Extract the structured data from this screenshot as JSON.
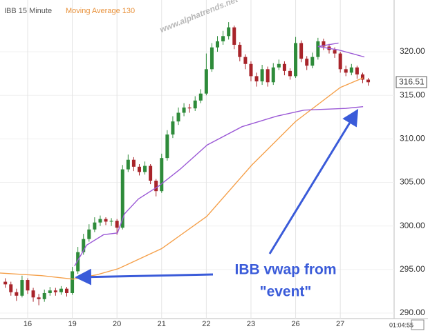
{
  "chart_data": {
    "type": "candlestick",
    "watermark": "www.alphatrends.net",
    "annotation": [
      "IBB vwap from",
      "\"event\""
    ],
    "time": "01:04:55",
    "last_price": 316.51,
    "xlim": [
      0.381,
      9.205
    ],
    "xticks": [
      {
        "value": 1,
        "label": "16"
      },
      {
        "value": 2,
        "label": "19"
      },
      {
        "value": 3,
        "label": "20"
      },
      {
        "value": 4,
        "label": "21"
      },
      {
        "value": 5,
        "label": "22"
      },
      {
        "value": 6,
        "label": "23"
      },
      {
        "value": 7,
        "label": "26"
      },
      {
        "value": 8,
        "label": "27"
      }
    ],
    "ylim": [
      289.37,
      324.2
    ],
    "yticks": [
      {
        "value": 290,
        "label": "290.00"
      },
      {
        "value": 295,
        "label": "295.00"
      },
      {
        "value": 300,
        "label": "300.00"
      },
      {
        "value": 305,
        "label": "305.00"
      },
      {
        "value": 310,
        "label": "310.00"
      },
      {
        "value": 315,
        "label": "315.00"
      },
      {
        "value": 320,
        "label": "320.00"
      }
    ],
    "grid": true,
    "series": [
      {
        "name": "IBB 15 Minute",
        "type": "candlestick",
        "up_color": "#2e8b3a",
        "down_color": "#a8242a",
        "x": [
          0.5,
          0.625,
          0.75,
          0.875,
          1,
          1.125,
          1.25,
          1.375,
          1.5,
          1.625,
          1.75,
          1.875,
          2,
          2.125,
          2.25,
          2.375,
          2.5,
          2.625,
          2.75,
          2.875,
          3,
          3.125,
          3.25,
          3.375,
          3.5,
          3.625,
          3.75,
          3.875,
          4,
          4.125,
          4.25,
          4.375,
          4.5,
          4.625,
          4.75,
          4.875,
          5,
          5.125,
          5.25,
          5.375,
          5.5,
          5.625,
          5.75,
          5.875,
          6,
          6.125,
          6.25,
          6.375,
          6.5,
          6.625,
          6.75,
          6.875,
          7,
          7.125,
          7.25,
          7.375,
          7.5,
          7.625,
          7.75,
          7.875,
          8,
          8.125,
          8.25,
          8.375,
          8.5,
          8.625
        ],
        "open": [
          293.6,
          293.3,
          292.4,
          292.0,
          293.8,
          292.6,
          291.8,
          291.6,
          292.3,
          292.6,
          292.4,
          292.8,
          292.3,
          294.8,
          297.0,
          298.5,
          299.6,
          300.4,
          300.8,
          300.5,
          300.6,
          299.8,
          306.5,
          307.6,
          306.8,
          306.2,
          306.9,
          305.2,
          304.0,
          307.8,
          310.5,
          312.0,
          313.0,
          313.6,
          313.5,
          314.4,
          315.2,
          318.0,
          320.5,
          321.2,
          321.8,
          322.8,
          320.8,
          319.4,
          318.6,
          317.2,
          316.6,
          318.0,
          316.5,
          318.2,
          318.6,
          317.8,
          317.2,
          321.0,
          319.2,
          318.4,
          319.4,
          321.2,
          320.6,
          320.2,
          319.8,
          318.0,
          317.6,
          318.2,
          317.4,
          316.8
        ],
        "high": [
          294.0,
          293.6,
          292.8,
          294.3,
          294.0,
          292.9,
          292.2,
          292.7,
          293.0,
          292.9,
          293.1,
          293.0,
          295.3,
          297.6,
          299.1,
          300.2,
          301.0,
          301.2,
          301.0,
          300.9,
          300.8,
          307.0,
          308.2,
          307.9,
          307.1,
          307.4,
          307.1,
          305.4,
          308.3,
          311.0,
          312.6,
          313.6,
          314.1,
          314.0,
          314.9,
          315.7,
          319.8,
          321.0,
          321.8,
          322.4,
          323.4,
          323.0,
          321.1,
          319.7,
          318.9,
          317.6,
          318.5,
          318.3,
          318.7,
          319.1,
          318.9,
          318.1,
          321.7,
          321.3,
          319.5,
          319.9,
          321.6,
          321.5,
          320.9,
          320.5,
          320.0,
          318.4,
          318.6,
          318.4,
          317.6,
          317.0
        ],
        "low": [
          292.9,
          292.0,
          291.4,
          291.8,
          292.2,
          291.3,
          290.9,
          291.3,
          292.0,
          292.0,
          292.1,
          291.9,
          292.1,
          294.5,
          296.7,
          298.2,
          299.3,
          300.0,
          300.1,
          300.0,
          299.0,
          299.6,
          306.2,
          306.3,
          305.8,
          305.9,
          304.8,
          303.4,
          303.8,
          307.5,
          310.1,
          311.6,
          312.6,
          313.0,
          313.2,
          314.1,
          315.0,
          317.7,
          320.0,
          320.8,
          321.4,
          320.3,
          318.9,
          318.0,
          316.6,
          316.0,
          316.2,
          316.0,
          316.2,
          317.9,
          317.3,
          316.8,
          317.0,
          318.8,
          317.9,
          318.1,
          319.1,
          320.2,
          319.8,
          319.3,
          317.6,
          317.2,
          317.3,
          316.9,
          316.4,
          316.1
        ],
        "close": [
          293.3,
          292.4,
          292.0,
          293.8,
          292.6,
          291.8,
          291.6,
          292.3,
          292.6,
          292.4,
          292.8,
          292.3,
          294.8,
          297.0,
          298.5,
          299.6,
          300.4,
          300.8,
          300.5,
          300.6,
          299.8,
          306.5,
          307.6,
          306.8,
          306.2,
          306.9,
          305.2,
          304.0,
          307.8,
          310.5,
          312.0,
          313.0,
          313.6,
          313.5,
          314.4,
          315.2,
          318.0,
          320.5,
          321.2,
          321.8,
          322.8,
          320.8,
          319.4,
          318.6,
          317.2,
          316.6,
          318.0,
          316.5,
          318.2,
          318.6,
          317.8,
          317.2,
          321.0,
          319.2,
          318.4,
          319.4,
          321.2,
          320.6,
          320.2,
          319.8,
          318.0,
          317.6,
          318.2,
          317.4,
          316.8,
          316.5
        ]
      },
      {
        "name": "Moving Average 130",
        "type": "line",
        "color": "#f5a04a",
        "x": [
          0.38,
          1.31,
          2.02,
          2.55,
          3.03,
          4.0,
          5.01,
          6.02,
          7.0,
          8.0,
          8.51
        ],
        "values": [
          294.6,
          294.3,
          293.9,
          294.4,
          295.1,
          297.4,
          301.1,
          307.0,
          312.0,
          315.9,
          317.0
        ]
      },
      {
        "type": "line",
        "color": "#9b59d6",
        "x": [
          2.05,
          2.32,
          2.7,
          3.01,
          3.17,
          3.48,
          3.94,
          4.41,
          5.02,
          5.8,
          6.57,
          7.19,
          8.12,
          8.51
        ],
        "values": [
          295.4,
          297.8,
          299.0,
          299.2,
          301.4,
          303.1,
          304.6,
          306.5,
          309.3,
          311.4,
          312.6,
          313.3,
          313.5,
          313.7
        ]
      },
      {
        "type": "line",
        "color": "#9b59d6",
        "x": [
          7.96,
          7.5,
          7.97,
          8.54
        ],
        "values": [
          321.0,
          320.6,
          320.2,
          319.4
        ]
      }
    ]
  }
}
